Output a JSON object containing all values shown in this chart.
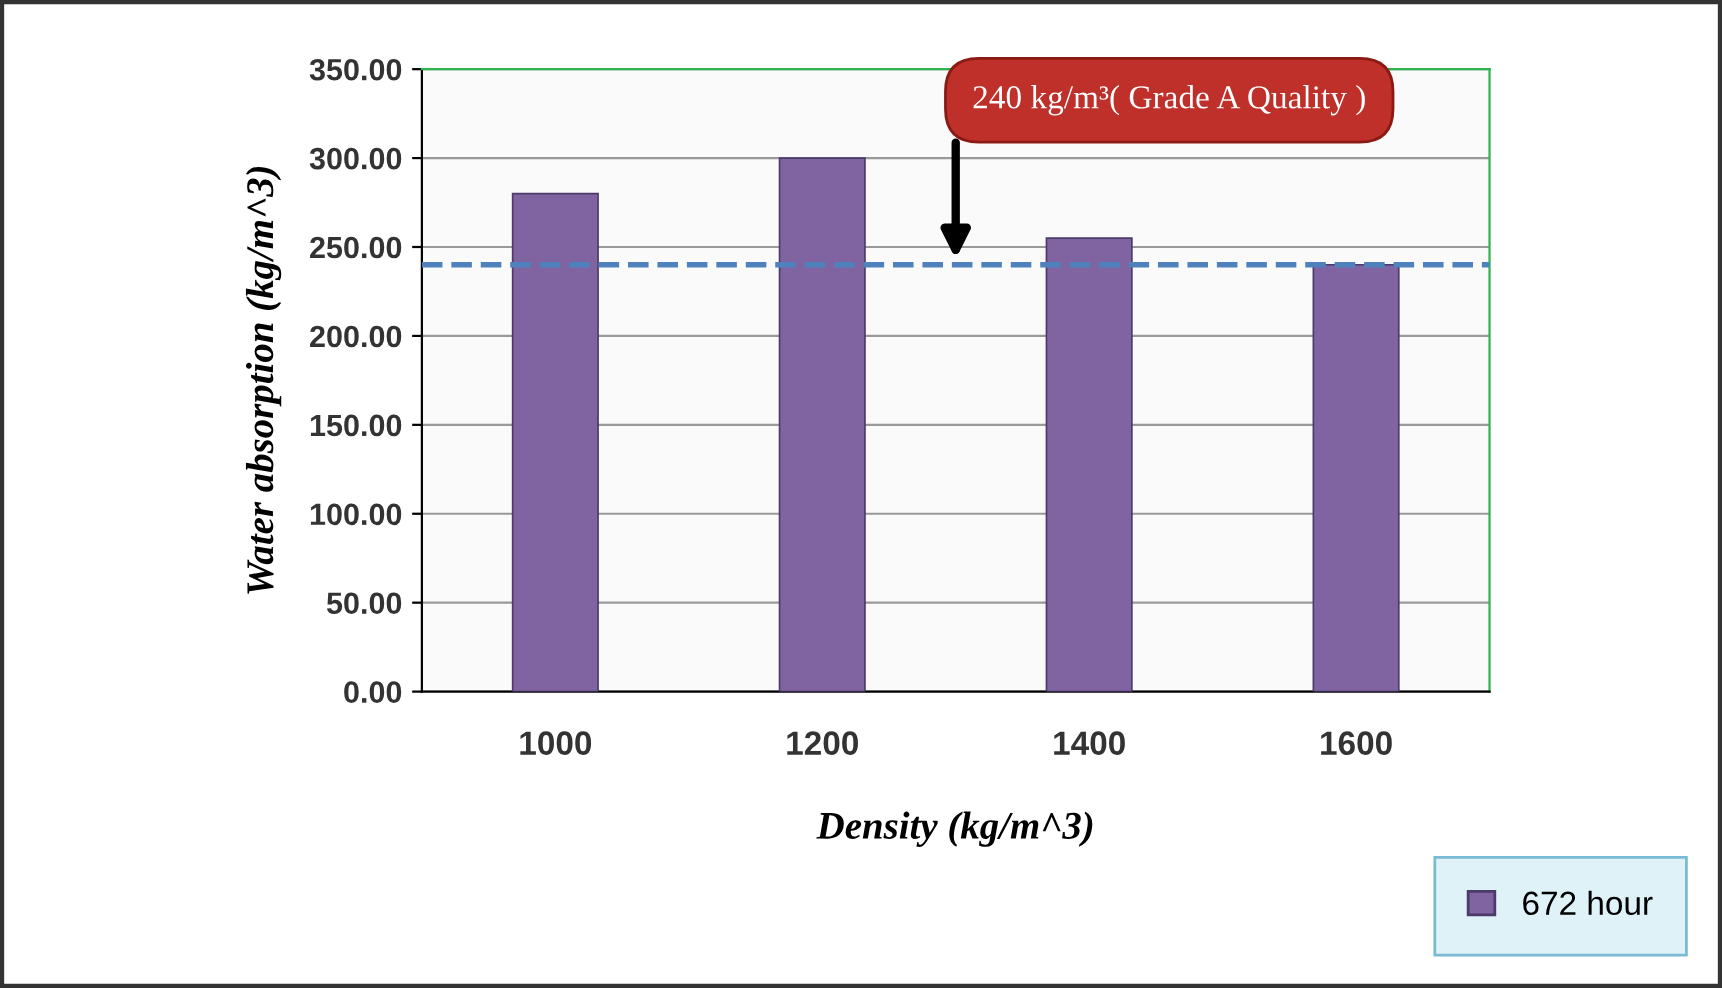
{
  "chart_data": {
    "type": "bar",
    "xlabel": "Density (kg/m^3)",
    "ylabel": "Water absorption (kg/m^3)",
    "categories": [
      "1000",
      "1200",
      "1400",
      "1600"
    ],
    "series": [
      {
        "name": "672 hour",
        "color": "#8064a2",
        "values": [
          280,
          300,
          255,
          240
        ]
      }
    ],
    "ylim": [
      0,
      350
    ],
    "yticks": [
      {
        "value": 0,
        "label": "0.00"
      },
      {
        "value": 50,
        "label": "50.00"
      },
      {
        "value": 100,
        "label": "100.00"
      },
      {
        "value": 150,
        "label": "150.00"
      },
      {
        "value": 200,
        "label": "200.00"
      },
      {
        "value": 250,
        "label": "250.00"
      },
      {
        "value": 300,
        "label": "300.00"
      },
      {
        "value": 350,
        "label": "350.00"
      }
    ],
    "grid": "y",
    "legend": "bottom right",
    "ref_lines": [
      {
        "axis": "y",
        "value": 240,
        "label": "240 kg/m³( Grade A Quality )",
        "color": "#4f81bd",
        "line_style": "dashed"
      }
    ]
  }
}
